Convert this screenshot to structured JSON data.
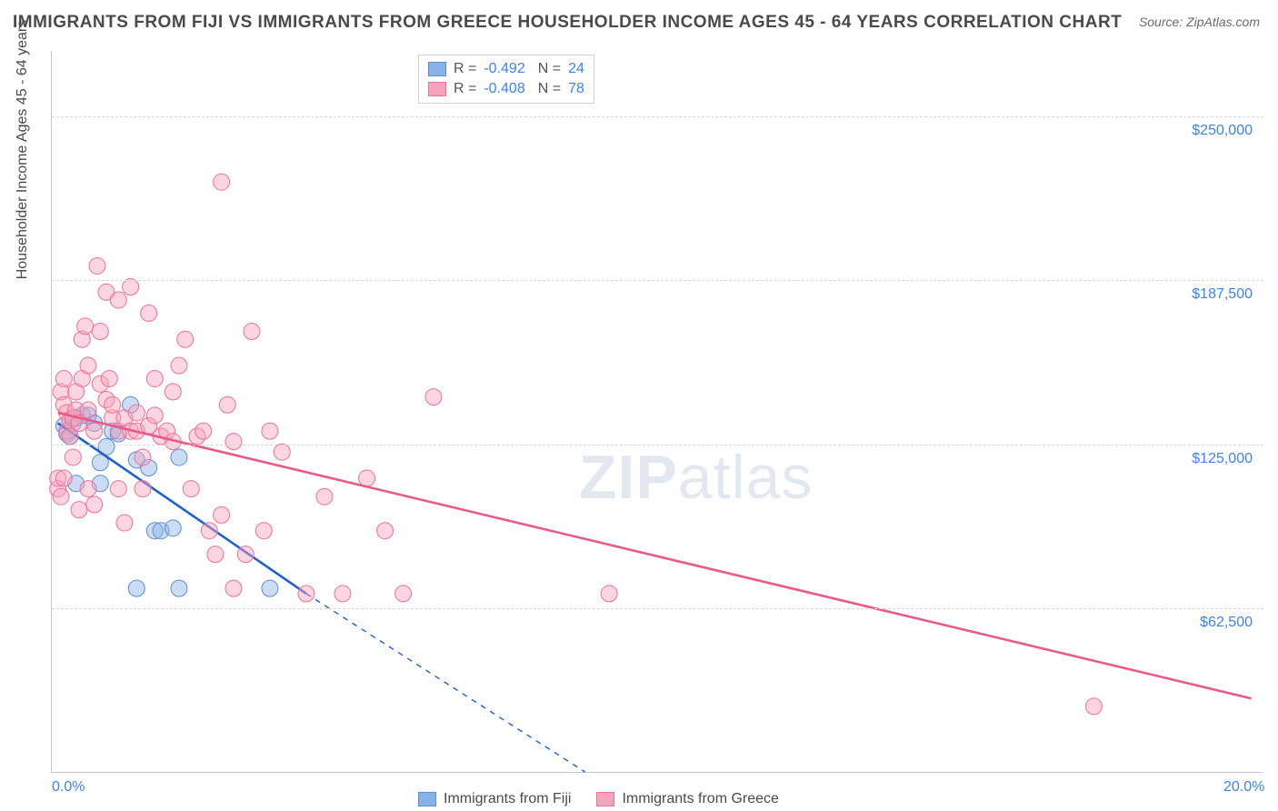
{
  "title": "IMMIGRANTS FROM FIJI VS IMMIGRANTS FROM GREECE HOUSEHOLDER INCOME AGES 45 - 64 YEARS CORRELATION CHART",
  "source": "Source: ZipAtlas.com",
  "ylabel": "Householder Income Ages 45 - 64 years",
  "watermark_a": "ZIP",
  "watermark_b": "atlas",
  "chart": {
    "type": "scatter",
    "xlim": [
      0.0,
      20.0
    ],
    "ylim": [
      0,
      275000
    ],
    "x_ticks": [
      {
        "v": 0.0,
        "label": "0.0%"
      },
      {
        "v": 20.0,
        "label": "20.0%"
      }
    ],
    "y_ticks": [
      {
        "v": 62500,
        "label": "$62,500"
      },
      {
        "v": 125000,
        "label": "$125,000"
      },
      {
        "v": 187500,
        "label": "$187,500"
      },
      {
        "v": 250000,
        "label": "$250,000"
      }
    ],
    "grid_color": "#d8d8d8",
    "axis_color": "#c8c8c8",
    "background_color": "#ffffff",
    "marker_radius": 9,
    "marker_opacity": 0.45,
    "line_width": 2.6,
    "series": [
      {
        "name": "Immigrants from Fiji",
        "fill_color": "#89b3e8",
        "stroke_color": "#5a8dd6",
        "line_color": "#1f5fd1",
        "r_value": "-0.492",
        "n_value": "24",
        "regression": {
          "x1": 0.1,
          "y1": 133000,
          "x2": 4.2,
          "y2": 68000,
          "dash_to_x": 8.8,
          "dash_to_y": 0
        },
        "points": [
          [
            0.2,
            132000
          ],
          [
            0.25,
            129000
          ],
          [
            0.3,
            128000
          ],
          [
            0.35,
            133000
          ],
          [
            0.4,
            135000
          ],
          [
            0.5,
            136000
          ],
          [
            0.6,
            136000
          ],
          [
            0.7,
            133000
          ],
          [
            0.8,
            118000
          ],
          [
            0.8,
            110000
          ],
          [
            0.9,
            124000
          ],
          [
            1.0,
            130000
          ],
          [
            1.1,
            129000
          ],
          [
            1.3,
            140000
          ],
          [
            1.4,
            119000
          ],
          [
            1.6,
            116000
          ],
          [
            1.7,
            92000
          ],
          [
            1.8,
            92000
          ],
          [
            2.0,
            93000
          ],
          [
            2.1,
            120000
          ],
          [
            1.4,
            70000
          ],
          [
            2.1,
            70000
          ],
          [
            3.6,
            70000
          ],
          [
            0.4,
            110000
          ]
        ]
      },
      {
        "name": "Immigrants from Greece",
        "fill_color": "#f6a3bb",
        "stroke_color": "#ef6f96",
        "line_color": "#ea5a87",
        "r_value": "-0.408",
        "n_value": "78",
        "regression": {
          "x1": 0.1,
          "y1": 137000,
          "x2": 19.8,
          "y2": 28000
        },
        "points": [
          [
            0.1,
            108000
          ],
          [
            0.1,
            112000
          ],
          [
            0.15,
            145000
          ],
          [
            0.2,
            140000
          ],
          [
            0.2,
            150000
          ],
          [
            0.25,
            137000
          ],
          [
            0.25,
            130000
          ],
          [
            0.3,
            134000
          ],
          [
            0.3,
            128000
          ],
          [
            0.35,
            135000
          ],
          [
            0.35,
            120000
          ],
          [
            0.4,
            138000
          ],
          [
            0.4,
            145000
          ],
          [
            0.45,
            133000
          ],
          [
            0.5,
            165000
          ],
          [
            0.5,
            150000
          ],
          [
            0.55,
            170000
          ],
          [
            0.6,
            138000
          ],
          [
            0.6,
            155000
          ],
          [
            0.7,
            130000
          ],
          [
            0.7,
            102000
          ],
          [
            0.75,
            193000
          ],
          [
            0.8,
            168000
          ],
          [
            0.8,
            148000
          ],
          [
            0.9,
            142000
          ],
          [
            0.9,
            183000
          ],
          [
            1.0,
            135000
          ],
          [
            1.0,
            140000
          ],
          [
            0.95,
            150000
          ],
          [
            1.1,
            130000
          ],
          [
            1.1,
            108000
          ],
          [
            1.2,
            135000
          ],
          [
            1.2,
            95000
          ],
          [
            1.3,
            130000
          ],
          [
            1.3,
            185000
          ],
          [
            1.4,
            130000
          ],
          [
            1.4,
            137000
          ],
          [
            1.5,
            108000
          ],
          [
            1.5,
            120000
          ],
          [
            1.6,
            132000
          ],
          [
            1.7,
            150000
          ],
          [
            1.7,
            136000
          ],
          [
            1.8,
            128000
          ],
          [
            1.9,
            130000
          ],
          [
            2.0,
            145000
          ],
          [
            2.0,
            126000
          ],
          [
            2.1,
            155000
          ],
          [
            2.2,
            165000
          ],
          [
            2.3,
            108000
          ],
          [
            2.4,
            128000
          ],
          [
            2.5,
            130000
          ],
          [
            2.6,
            92000
          ],
          [
            2.7,
            83000
          ],
          [
            2.8,
            98000
          ],
          [
            2.9,
            140000
          ],
          [
            3.0,
            126000
          ],
          [
            3.0,
            70000
          ],
          [
            3.2,
            83000
          ],
          [
            3.3,
            168000
          ],
          [
            3.5,
            92000
          ],
          [
            3.6,
            130000
          ],
          [
            3.8,
            122000
          ],
          [
            4.2,
            68000
          ],
          [
            4.5,
            105000
          ],
          [
            4.8,
            68000
          ],
          [
            5.2,
            112000
          ],
          [
            5.5,
            92000
          ],
          [
            5.8,
            68000
          ],
          [
            6.3,
            143000
          ],
          [
            2.8,
            225000
          ],
          [
            1.1,
            180000
          ],
          [
            0.6,
            108000
          ],
          [
            0.45,
            100000
          ],
          [
            0.15,
            105000
          ],
          [
            0.2,
            112000
          ],
          [
            9.2,
            68000
          ],
          [
            17.2,
            25000
          ],
          [
            1.6,
            175000
          ]
        ]
      }
    ]
  },
  "colors": {
    "tick_label": "#3b82f6",
    "text": "#4a4a4a",
    "legend_value": "#3b82f6"
  }
}
